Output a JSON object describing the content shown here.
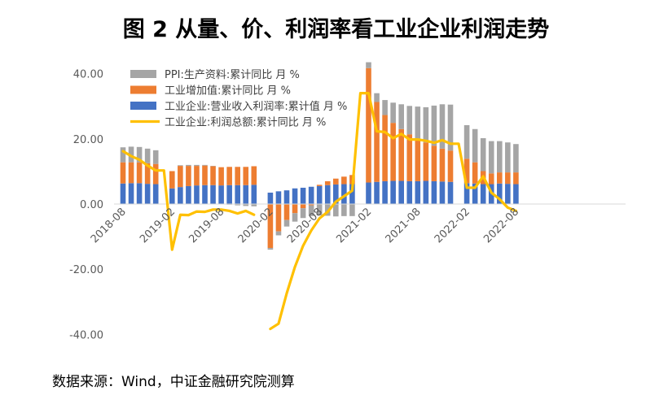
{
  "title": "图 2  从量、价、利润率看工业企业利润走势",
  "source": "数据来源：Wind，中证金融研究院测算",
  "chart_data": {
    "type": "bar",
    "stacked": true,
    "x": [
      "2018-08",
      "2018-09",
      "2018-10",
      "2018-11",
      "2018-12",
      "2019-01",
      "2019-02",
      "2019-03",
      "2019-04",
      "2019-05",
      "2019-06",
      "2019-07",
      "2019-08",
      "2019-09",
      "2019-10",
      "2019-11",
      "2019-12",
      "2020-01",
      "2020-02",
      "2020-03",
      "2020-04",
      "2020-05",
      "2020-06",
      "2020-07",
      "2020-08",
      "2020-09",
      "2020-10",
      "2020-11",
      "2020-12",
      "2021-01",
      "2021-02",
      "2021-03",
      "2021-04",
      "2021-05",
      "2021-06",
      "2021-07",
      "2021-08",
      "2021-09",
      "2021-10",
      "2021-11",
      "2021-12",
      "2022-01",
      "2022-02",
      "2022-03",
      "2022-04",
      "2022-05",
      "2022-06",
      "2022-07",
      "2022-08"
    ],
    "xticks": [
      "2018-08",
      "2019-02",
      "2019-08",
      "2020-02",
      "2020-08",
      "2021-02",
      "2021-08",
      "2022-02",
      "2022-08"
    ],
    "yticks": [
      "40.00",
      "20.00",
      "0.00",
      "-20.00",
      "-40.00"
    ],
    "ylim": [
      -40,
      40
    ],
    "legend_position": "top-left",
    "series": [
      {
        "name": "PPI:生产资料:累计同比 月 %",
        "kind": "bar",
        "color": "#A5A5A5",
        "values": [
          4.6,
          4.8,
          4.7,
          4.5,
          4.2,
          null,
          null,
          0.2,
          0.3,
          0.3,
          0.2,
          0.1,
          0.0,
          -0.2,
          -0.4,
          -0.6,
          -0.7,
          null,
          -0.5,
          -1.2,
          -2.0,
          -2.6,
          -3.0,
          -3.3,
          -3.5,
          -3.6,
          -3.8,
          -3.7,
          -3.7,
          null,
          1.8,
          2.7,
          4.6,
          6.2,
          7.6,
          8.7,
          9.8,
          10.8,
          12.3,
          13.6,
          14.1,
          null,
          10.3,
          10.2,
          10.1,
          9.9,
          9.6,
          9.2,
          8.7
        ]
      },
      {
        "name": "工业增加值:累计同比 月 %",
        "kind": "bar",
        "color": "#ED7D31",
        "values": [
          6.5,
          6.4,
          6.4,
          6.3,
          6.2,
          null,
          5.3,
          6.5,
          6.2,
          6.0,
          6.0,
          5.8,
          5.6,
          5.6,
          5.6,
          5.6,
          5.7,
          null,
          -13.5,
          -8.4,
          -4.9,
          -2.8,
          -1.3,
          -0.4,
          0.4,
          1.2,
          1.8,
          2.3,
          2.8,
          null,
          35.1,
          24.5,
          20.3,
          17.8,
          15.9,
          14.4,
          13.1,
          11.8,
          10.9,
          10.1,
          9.6,
          null,
          7.5,
          6.5,
          4.0,
          3.3,
          3.4,
          3.5,
          3.6
        ]
      },
      {
        "name": "工业企业:营业收入利润率:累计值 月 %",
        "kind": "bar",
        "color": "#4472C4",
        "values": [
          6.3,
          6.4,
          6.4,
          6.2,
          6.1,
          null,
          4.8,
          5.2,
          5.5,
          5.7,
          5.8,
          5.8,
          5.7,
          5.8,
          5.8,
          5.8,
          5.9,
          null,
          3.5,
          3.9,
          4.2,
          4.8,
          5.0,
          5.3,
          5.5,
          5.8,
          6.0,
          6.1,
          6.1,
          null,
          6.6,
          6.8,
          7.0,
          7.1,
          7.1,
          7.0,
          7.0,
          7.1,
          7.0,
          6.9,
          6.8,
          null,
          6.4,
          6.3,
          6.1,
          6.1,
          6.3,
          6.2,
          6.1
        ]
      },
      {
        "name": "工业企业:利润总额:累计同比 月 %",
        "kind": "line",
        "color": "#FFC000",
        "values": [
          16.2,
          14.7,
          13.6,
          11.8,
          10.3,
          10.3,
          -14.0,
          -3.3,
          -3.4,
          -2.3,
          -2.4,
          -1.7,
          -1.7,
          -2.1,
          -2.9,
          -2.1,
          -3.3,
          null,
          -38.3,
          -36.7,
          -27.4,
          -19.3,
          -12.8,
          -8.1,
          -4.4,
          -2.4,
          0.7,
          2.4,
          4.1,
          34.0,
          34.0,
          22.3,
          22.1,
          20.2,
          21.5,
          19.8,
          19.8,
          19.4,
          18.8,
          19.6,
          18.5,
          18.5,
          5.0,
          5.0,
          8.5,
          3.5,
          1.5,
          -1.1,
          -2.1
        ]
      }
    ]
  }
}
